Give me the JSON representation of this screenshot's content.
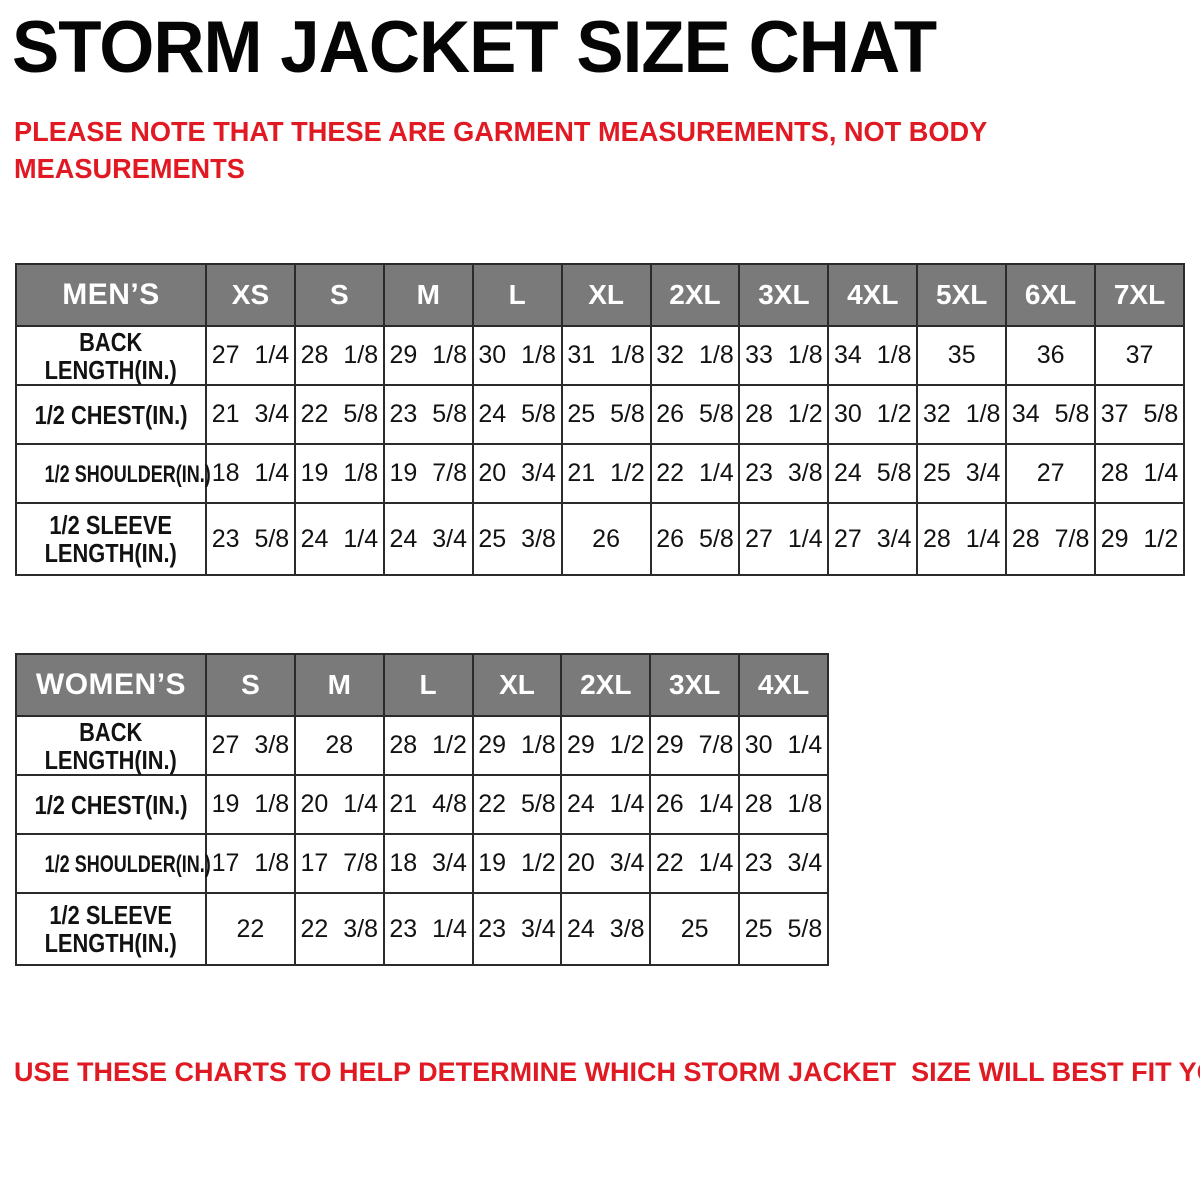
{
  "title": "STORM JACKET SIZE CHAT",
  "note": "PLEASE NOTE THAT THESE ARE GARMENT MEASUREMENTS, NOT BODY\nMEASUREMENTS",
  "footer": "USE THESE CHARTS TO HELP DETERMINE WHICH STORM JACKET  SIZE WILL BEST FIT YOU.",
  "colors": {
    "accent_red": "#e01923",
    "header_gray": "#7a7a7a",
    "header_text": "#ffffff",
    "border_dark": "#2b2b2b",
    "body_text": "#121212",
    "title_black": "#050505"
  },
  "chart_data": [
    {
      "type": "table",
      "title": "MEN’S",
      "columns": [
        "XS",
        "S",
        "M",
        "L",
        "XL",
        "2XL",
        "3XL",
        "4XL",
        "5XL",
        "6XL",
        "7XL"
      ],
      "rows": [
        {
          "label": "BACK LENGTH(IN.)",
          "label_lines": [
            "BACK",
            "LENGTH(IN.)"
          ],
          "values": [
            "27 1/4",
            "28 1/8",
            "29 1/8",
            "30 1/8",
            "31 1/8",
            "32 1/8",
            "33 1/8",
            "34 1/8",
            "35",
            "36",
            "37"
          ]
        },
        {
          "label": "1/2 CHEST(IN.)",
          "label_lines": [
            "1/2 CHEST(IN.)"
          ],
          "values": [
            "21 3/4",
            "22 5/8",
            "23 5/8",
            "24 5/8",
            "25 5/8",
            "26 5/8",
            "28 1/2",
            "30 1/2",
            "32 1/8",
            "34 5/8",
            "37 5/8"
          ]
        },
        {
          "label": "1/2 SHOULDER(IN.)",
          "label_lines": [
            "1/2 SHOULDER(IN.)"
          ],
          "values": [
            "18 1/4",
            "19 1/8",
            "19 7/8",
            "20 3/4",
            "21 1/2",
            "22 1/4",
            "23 3/8",
            "24 5/8",
            "25 3/4",
            "27",
            "28 1/4"
          ]
        },
        {
          "label": "1/2 SLEEVE LENGTH(IN.)",
          "label_lines": [
            "1/2 SLEEVE",
            "LENGTH(IN.)"
          ],
          "values": [
            "23 5/8",
            "24 1/4",
            "24 3/4",
            "25 3/8",
            "26",
            "26 5/8",
            "27 1/4",
            "27 3/4",
            "28 1/4",
            "28 7/8",
            "29 1/2"
          ]
        }
      ]
    },
    {
      "type": "table",
      "title": "WOMEN’S",
      "columns": [
        "S",
        "M",
        "L",
        "XL",
        "2XL",
        "3XL",
        "4XL"
      ],
      "rows": [
        {
          "label": "BACK LENGTH(IN.)",
          "label_lines": [
            "BACK",
            "LENGTH(IN.)"
          ],
          "values": [
            "27 3/8",
            "28",
            "28 1/2",
            "29 1/8",
            "29 1/2",
            "29 7/8",
            "30 1/4"
          ]
        },
        {
          "label": "1/2 CHEST(IN.)",
          "label_lines": [
            "1/2 CHEST(IN.)"
          ],
          "values": [
            "19 1/8",
            "20 1/4",
            "21 4/8",
            "22 5/8",
            "24 1/4",
            "26 1/4",
            "28 1/8"
          ]
        },
        {
          "label": "1/2 SHOULDER(IN.)",
          "label_lines": [
            "1/2 SHOULDER(IN.)"
          ],
          "values": [
            "17 1/8",
            "17 7/8",
            "18 3/4",
            "19 1/2",
            "20 3/4",
            "22 1/4",
            "23 3/4"
          ]
        },
        {
          "label": "1/2 SLEEVE LENGTH(IN.)",
          "label_lines": [
            "1/2 SLEEVE",
            "LENGTH(IN.)"
          ],
          "values": [
            "22",
            "22 3/8",
            "23 1/4",
            "23 3/4",
            "24 3/8",
            "25",
            "25 5/8"
          ]
        }
      ]
    }
  ]
}
